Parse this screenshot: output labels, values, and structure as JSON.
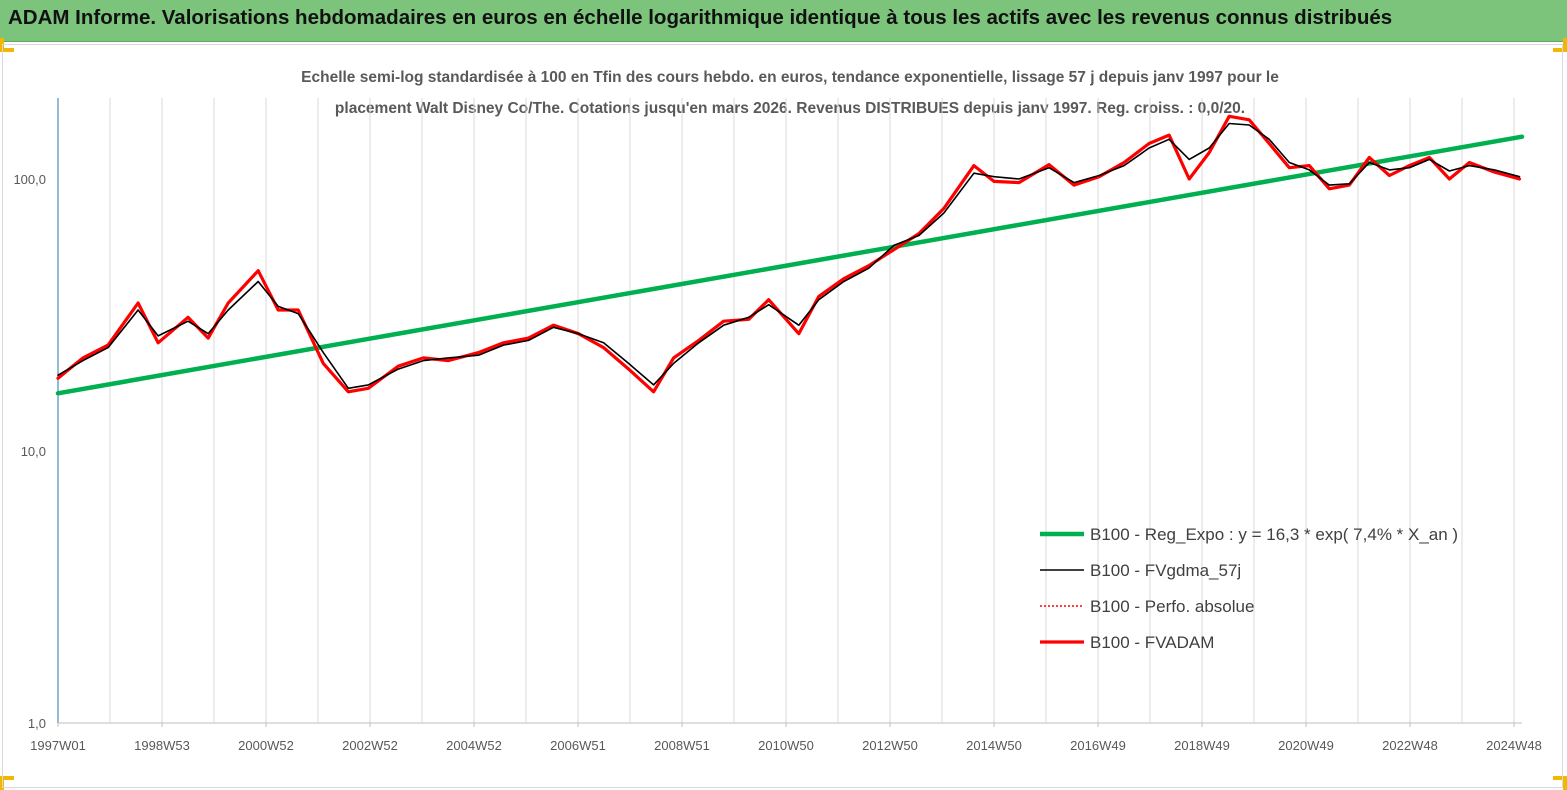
{
  "banner": {
    "title": "ADAM Informe. Valorisations hebdomadaires en euros en échelle logarithmique identique à tous les actifs avec les revenus connus distribués"
  },
  "chart": {
    "subtitle_line1": "Echelle semi-log standardisée à 100 en Tfin des cours hebdo. en euros, tendance exponentielle, lissage 57 j depuis janv 1997 pour le",
    "subtitle_line2": "placement Walt Disney Co/The. Cotations jusqu'en mars 2026. Revenus DISTRIBUES depuis janv 1997. Reg. croiss. : 0,0/20."
  },
  "colors": {
    "banner": "#7cc47c",
    "reg_expo": "#00b050",
    "fvgdma": "#000000",
    "perfo": "#ff0000",
    "fvadam": "#ff0000",
    "grid": "#d9d9d9"
  },
  "chart_data": {
    "type": "line",
    "yscale": "log",
    "ylim": [
      1,
      180
    ],
    "grid": "vertical",
    "legend_position": "bottom-right",
    "yticks": [
      {
        "value": 1,
        "label": "1,0"
      },
      {
        "value": 10,
        "label": "10,0"
      },
      {
        "value": 100,
        "label": "100,0"
      }
    ],
    "xtick_labels": [
      "1997W01",
      "1998W53",
      "2000W52",
      "2002W52",
      "2004W52",
      "2006W51",
      "2008W51",
      "2010W50",
      "2012W50",
      "2014W50",
      "2016W49",
      "2018W49",
      "2020W49",
      "2022W48",
      "2024W48"
    ],
    "xlim": [
      1997.0,
      2026.25
    ],
    "series": [
      {
        "name": "B100 - Reg_Expo : y = 16,3 * exp( 7,4% *  X_an )",
        "style": "thick-green",
        "x": [
          1997.0,
          2026.25
        ],
        "values": [
          16.3,
          143.0
        ]
      },
      {
        "name": "B100 - FVgdma_57j",
        "style": "thin-black",
        "x": [
          1997.0,
          1997.5,
          1998.0,
          1998.6,
          1999.0,
          1999.6,
          2000.0,
          2000.4,
          2001.0,
          2001.4,
          2001.8,
          2002.3,
          2002.8,
          2003.2,
          2003.8,
          2004.3,
          2004.8,
          2005.4,
          2005.9,
          2006.4,
          2006.9,
          2007.4,
          2007.9,
          2008.4,
          2008.9,
          2009.3,
          2009.8,
          2010.3,
          2010.8,
          2011.2,
          2011.8,
          2012.2,
          2012.7,
          2013.2,
          2013.7,
          2014.2,
          2014.7,
          2015.3,
          2015.7,
          2016.2,
          2016.8,
          2017.3,
          2017.8,
          2018.3,
          2018.8,
          2019.2,
          2019.6,
          2020.0,
          2020.4,
          2020.8,
          2021.2,
          2021.6,
          2022.0,
          2022.4,
          2022.8,
          2023.2,
          2023.6,
          2024.0,
          2024.4,
          2024.8,
          2025.2,
          2025.7,
          2026.2
        ],
        "values": [
          19.0,
          21.5,
          24.0,
          33.0,
          26.5,
          30.0,
          27.0,
          33.0,
          42.0,
          34.0,
          32.0,
          23.0,
          17.0,
          17.5,
          20.0,
          21.5,
          22.0,
          22.5,
          24.5,
          25.5,
          28.5,
          27.0,
          25.0,
          21.0,
          17.5,
          21.0,
          25.0,
          29.0,
          31.0,
          34.5,
          29.0,
          36.0,
          42.0,
          47.0,
          57.0,
          62.0,
          75.0,
          105.0,
          102.0,
          100.0,
          110.0,
          97.0,
          103.0,
          112.0,
          130.0,
          140.0,
          118.0,
          130.0,
          160.0,
          158.0,
          140.0,
          115.0,
          108.0,
          95.0,
          96.0,
          115.0,
          108.0,
          110.0,
          118.0,
          107.0,
          112.0,
          108.0,
          102.0
        ]
      },
      {
        "name": "B100 - Perfo. absolue",
        "style": "dotted-red",
        "x": [
          1997.0,
          1997.5,
          1998.0,
          1998.6,
          1999.0,
          1999.6,
          2000.0,
          2000.4,
          2001.0,
          2001.4,
          2001.8,
          2002.3,
          2002.8,
          2003.2,
          2003.8,
          2004.3,
          2004.8,
          2005.4,
          2005.9,
          2006.4,
          2006.9,
          2007.4,
          2007.9,
          2008.4,
          2008.9,
          2009.3,
          2009.8,
          2010.3,
          2010.8,
          2011.2,
          2011.8,
          2012.2,
          2012.7,
          2013.2,
          2013.7,
          2014.2,
          2014.7,
          2015.3,
          2015.7,
          2016.2,
          2016.8,
          2017.3,
          2017.8,
          2018.3,
          2018.8,
          2019.2,
          2019.6,
          2020.0,
          2020.4,
          2020.8,
          2021.2,
          2021.6,
          2022.0,
          2022.4,
          2022.8,
          2023.2,
          2023.6,
          2024.0,
          2024.4,
          2024.8,
          2025.2,
          2025.7,
          2026.2
        ],
        "values": [
          18.5,
          22.0,
          24.5,
          35.0,
          25.0,
          31.0,
          26.0,
          35.0,
          46.0,
          33.0,
          33.0,
          21.0,
          16.5,
          17.0,
          20.5,
          22.0,
          21.5,
          23.0,
          25.0,
          26.0,
          29.0,
          27.0,
          24.0,
          20.0,
          16.5,
          22.0,
          25.5,
          30.0,
          30.5,
          36.0,
          27.0,
          37.0,
          43.0,
          48.0,
          55.0,
          63.0,
          78.0,
          112.0,
          98.0,
          97.0,
          113.0,
          95.0,
          102.0,
          115.0,
          135.0,
          145.0,
          100.0,
          125.0,
          170.0,
          165.0,
          135.0,
          110.0,
          112.0,
          92.0,
          95.0,
          120.0,
          103.0,
          112.0,
          120.0,
          100.0,
          115.0,
          106.0,
          100.0
        ]
      },
      {
        "name": "B100 - FVADAM",
        "style": "thick-red",
        "x": [
          1997.0,
          1997.5,
          1998.0,
          1998.6,
          1999.0,
          1999.6,
          2000.0,
          2000.4,
          2001.0,
          2001.4,
          2001.8,
          2002.3,
          2002.8,
          2003.2,
          2003.8,
          2004.3,
          2004.8,
          2005.4,
          2005.9,
          2006.4,
          2006.9,
          2007.4,
          2007.9,
          2008.4,
          2008.9,
          2009.3,
          2009.8,
          2010.3,
          2010.8,
          2011.2,
          2011.8,
          2012.2,
          2012.7,
          2013.2,
          2013.7,
          2014.2,
          2014.7,
          2015.3,
          2015.7,
          2016.2,
          2016.8,
          2017.3,
          2017.8,
          2018.3,
          2018.8,
          2019.2,
          2019.6,
          2020.0,
          2020.4,
          2020.8,
          2021.2,
          2021.6,
          2022.0,
          2022.4,
          2022.8,
          2023.2,
          2023.6,
          2024.0,
          2024.4,
          2024.8,
          2025.2,
          2025.7,
          2026.2
        ],
        "values": [
          18.5,
          22.0,
          24.5,
          35.0,
          25.0,
          31.0,
          26.0,
          35.0,
          46.0,
          33.0,
          33.0,
          21.0,
          16.5,
          17.0,
          20.5,
          22.0,
          21.5,
          23.0,
          25.0,
          26.0,
          29.0,
          27.0,
          24.0,
          20.0,
          16.5,
          22.0,
          25.5,
          30.0,
          30.5,
          36.0,
          27.0,
          37.0,
          43.0,
          48.0,
          55.0,
          63.0,
          78.0,
          112.0,
          98.0,
          97.0,
          113.0,
          95.0,
          102.0,
          115.0,
          135.0,
          145.0,
          100.0,
          125.0,
          170.0,
          165.0,
          135.0,
          110.0,
          112.0,
          92.0,
          95.0,
          120.0,
          103.0,
          112.0,
          120.0,
          100.0,
          115.0,
          106.0,
          100.0
        ]
      }
    ]
  }
}
